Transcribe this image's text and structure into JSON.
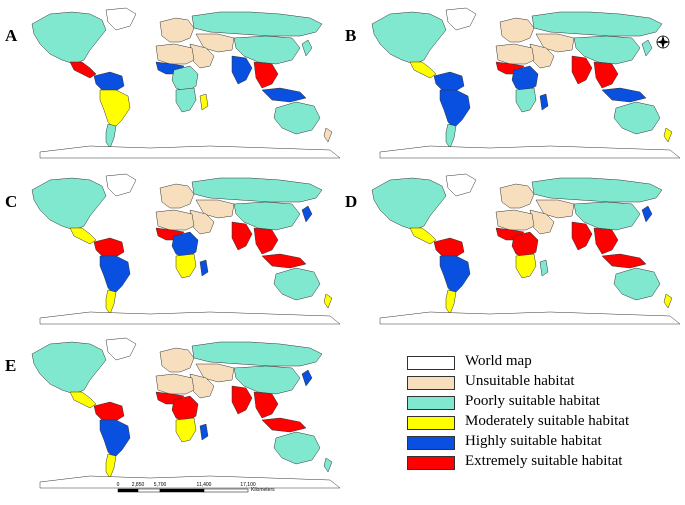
{
  "panels": [
    {
      "label": "A",
      "colors": {
        "na": "poorly",
        "ca": "extremely",
        "nsa": "highly",
        "sa": "moderately",
        "ssa": "poorly",
        "eu": "unsuitable",
        "ru": "poorly",
        "me": "unsuitable",
        "ca_asia": "unsuitable",
        "china": "poorly",
        "nafrica": "unsuitable",
        "wafrica": "highly",
        "cafrica": "poorly",
        "safrica": "poorly",
        "madag": "moderately",
        "india": "highly",
        "seasia": "extremely",
        "indo": "highly",
        "aus": "poorly",
        "nz": "unsuitable",
        "japan": "poorly"
      }
    },
    {
      "label": "B",
      "colors": {
        "na": "poorly",
        "ca": "moderately",
        "nsa": "highly",
        "sa": "highly",
        "ssa": "poorly",
        "eu": "unsuitable",
        "ru": "poorly",
        "me": "unsuitable",
        "ca_asia": "unsuitable",
        "china": "poorly",
        "nafrica": "unsuitable",
        "wafrica": "extremely",
        "cafrica": "highly",
        "safrica": "poorly",
        "madag": "highly",
        "india": "extremely",
        "seasia": "extremely",
        "indo": "highly",
        "aus": "poorly",
        "nz": "moderately",
        "japan": "poorly"
      }
    },
    {
      "label": "C",
      "colors": {
        "na": "poorly",
        "ca": "moderately",
        "nsa": "extremely",
        "sa": "highly",
        "ssa": "moderately",
        "eu": "unsuitable",
        "ru": "poorly",
        "me": "unsuitable",
        "ca_asia": "unsuitable",
        "china": "poorly",
        "nafrica": "unsuitable",
        "wafrica": "extremely",
        "cafrica": "highly",
        "safrica": "moderately",
        "madag": "highly",
        "india": "extremely",
        "seasia": "extremely",
        "indo": "extremely",
        "aus": "poorly",
        "nz": "moderately",
        "japan": "highly"
      }
    },
    {
      "label": "D",
      "colors": {
        "na": "poorly",
        "ca": "moderately",
        "nsa": "extremely",
        "sa": "highly",
        "ssa": "moderately",
        "eu": "unsuitable",
        "ru": "poorly",
        "me": "unsuitable",
        "ca_asia": "unsuitable",
        "china": "poorly",
        "nafrica": "unsuitable",
        "wafrica": "extremely",
        "cafrica": "extremely",
        "safrica": "moderately",
        "madag": "poorly",
        "india": "extremely",
        "seasia": "extremely",
        "indo": "extremely",
        "aus": "poorly",
        "nz": "moderately",
        "japan": "highly"
      }
    },
    {
      "label": "E",
      "colors": {
        "na": "poorly",
        "ca": "moderately",
        "nsa": "extremely",
        "sa": "highly",
        "ssa": "moderately",
        "eu": "unsuitable",
        "ru": "poorly",
        "me": "unsuitable",
        "ca_asia": "unsuitable",
        "china": "poorly",
        "nafrica": "unsuitable",
        "wafrica": "extremely",
        "cafrica": "extremely",
        "safrica": "moderately",
        "madag": "highly",
        "india": "extremely",
        "seasia": "extremely",
        "indo": "extremely",
        "aus": "poorly",
        "nz": "poorly",
        "japan": "highly"
      }
    }
  ],
  "legend": [
    {
      "key": "world",
      "label": "World map",
      "color": "#ffffff"
    },
    {
      "key": "unsuitable",
      "label": "Unsuitable habitat",
      "color": "#f7dfbd"
    },
    {
      "key": "poorly",
      "label": "Poorly suitable habitat",
      "color": "#7fe8cf"
    },
    {
      "key": "moderately",
      "label": "Moderately suitable habitat",
      "color": "#ffff00"
    },
    {
      "key": "highly",
      "label": "Highly suitable habitat",
      "color": "#0a50e0"
    },
    {
      "key": "extremely",
      "label": "Extremely suitable habitat",
      "color": "#ff0000"
    }
  ],
  "scalebar": {
    "ticks": [
      "0",
      "2,850",
      "5,700",
      "11,400",
      "17,100"
    ],
    "unit": "Kilometers"
  },
  "compass_icon": "compass-rose-icon"
}
